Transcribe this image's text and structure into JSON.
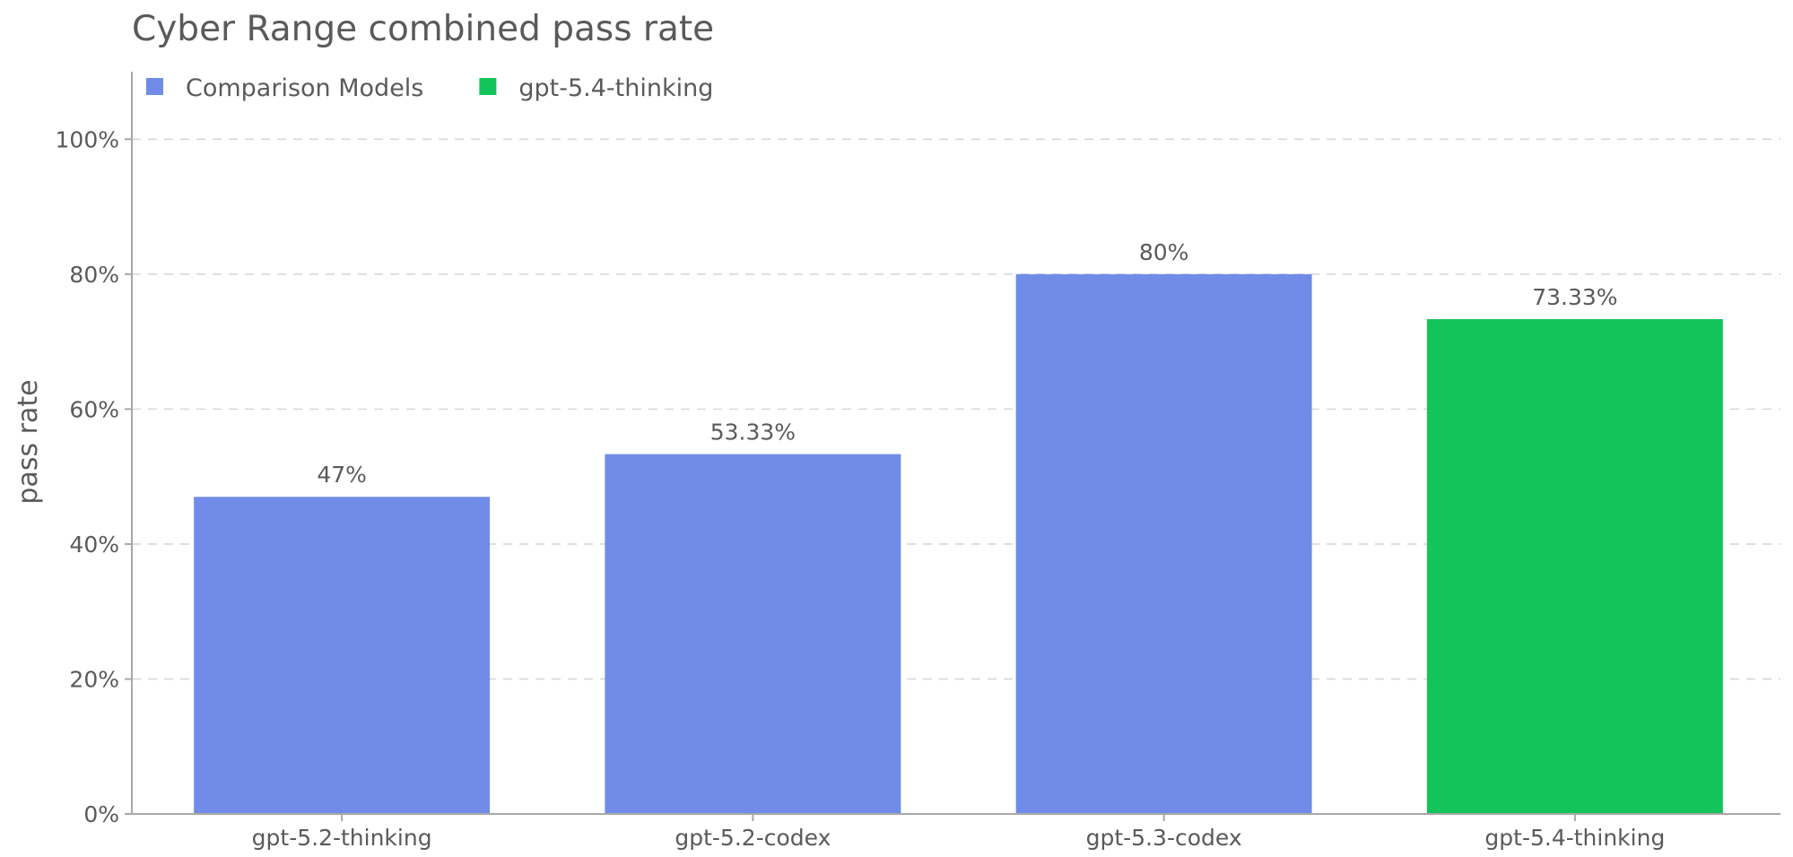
{
  "chart_data": {
    "type": "bar",
    "title": "Cyber Range combined pass rate",
    "xlabel": "",
    "ylabel": "pass rate",
    "ylim": [
      0,
      110
    ],
    "yticks": [
      0,
      20,
      40,
      60,
      80,
      100
    ],
    "ytick_suffix": "%",
    "grid": "horizontal-dashed",
    "legend_position": "top-left",
    "categories": [
      "gpt-5.2-thinking",
      "gpt-5.2-codex",
      "gpt-5.3-codex",
      "gpt-5.4-thinking"
    ],
    "values": [
      47,
      53.33,
      80,
      73.33
    ],
    "value_labels": [
      "47%",
      "53.33%",
      "80%",
      "73.33%"
    ],
    "bar_groups": [
      "Comparison Models",
      "Comparison Models",
      "Comparison Models",
      "gpt-5.4-thinking"
    ],
    "legend": [
      {
        "name": "Comparison Models",
        "color": "#708cE8"
      },
      {
        "name": "gpt-5.4-thinking",
        "color": "#13C45B"
      }
    ]
  }
}
